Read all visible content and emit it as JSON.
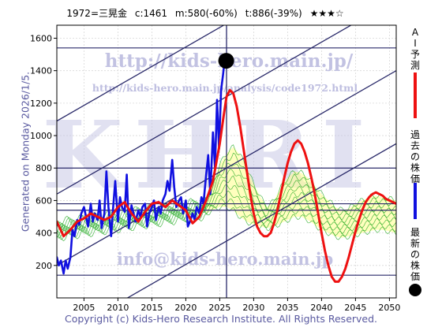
{
  "header": {
    "code_name": "1972=三晃金",
    "current": "c:1461",
    "mid": "m:580(-60%)",
    "target": "t:886(-39%)",
    "stars": "★★★☆"
  },
  "side_text": "Generated on Monday 2026/1/5.",
  "footer": "Copyright (c) Kids-Hero Research Institute. All Rights Reserved.",
  "watermarks": {
    "url": "http://kids-hero.main.jp/",
    "analysis_url": "http://kids-hero.main.jp/analysis/code1972.html",
    "logo": "KHRI",
    "email": "info@kids-hero.main.jp"
  },
  "legend": {
    "ai_forecast": [
      "A",
      "I",
      "予",
      "測"
    ],
    "past_price": [
      "過",
      "去",
      "の",
      "株",
      "価"
    ],
    "latest_price": [
      "最",
      "新",
      "の",
      "株",
      "価"
    ]
  },
  "colors": {
    "past_price": "#1010e0",
    "ai_forecast": "#ee1111",
    "channel_line": "#2a2a6a",
    "forecast_band": "#22aa22",
    "band_fill": "#ffff88",
    "latest_marker": "#000000"
  },
  "chart_data": {
    "type": "line",
    "xlim": [
      2001,
      2051
    ],
    "ylim": [
      0,
      1680
    ],
    "xticks": [
      2005,
      2010,
      2015,
      2020,
      2025,
      2030,
      2035,
      2040,
      2045,
      2050
    ],
    "yticks": [
      200,
      400,
      600,
      800,
      1000,
      1200,
      1400,
      1600
    ],
    "grid": true,
    "latest_point": {
      "x": 2025.95,
      "y": 1461
    },
    "horizontal_levels": [
      1540,
      800,
      580,
      540,
      140
    ],
    "vertical_marker_x": 2026.0,
    "series": [
      {
        "role": "past_price",
        "x": [
          2001,
          2001.3,
          2001.6,
          2002,
          2002.3,
          2002.6,
          2003,
          2003.3,
          2003.6,
          2004,
          2004.3,
          2004.6,
          2005,
          2005.3,
          2005.6,
          2006,
          2006.3,
          2006.6,
          2007,
          2007.3,
          2007.6,
          2008,
          2008.3,
          2008.6,
          2009,
          2009.3,
          2009.6,
          2010,
          2010.3,
          2010.6,
          2011,
          2011.3,
          2011.6,
          2012,
          2012.3,
          2012.6,
          2013,
          2013.3,
          2013.6,
          2014,
          2014.3,
          2014.6,
          2015,
          2015.3,
          2015.6,
          2016,
          2016.3,
          2016.6,
          2017,
          2017.3,
          2017.6,
          2018,
          2018.3,
          2018.6,
          2019,
          2019.3,
          2019.6,
          2020,
          2020.3,
          2020.6,
          2021,
          2021.3,
          2021.6,
          2022,
          2022.3,
          2022.6,
          2023,
          2023.3,
          2023.6,
          2024,
          2024.3,
          2024.6,
          2024.9,
          2025.2,
          2025.5,
          2025.8,
          2025.95
        ],
        "y": [
          250,
          200,
          230,
          150,
          230,
          180,
          250,
          420,
          380,
          480,
          450,
          520,
          560,
          500,
          440,
          580,
          470,
          520,
          480,
          600,
          430,
          520,
          780,
          560,
          380,
          560,
          720,
          470,
          620,
          560,
          530,
          760,
          430,
          570,
          520,
          470,
          540,
          500,
          560,
          580,
          440,
          520,
          560,
          600,
          480,
          560,
          520,
          600,
          640,
          720,
          660,
          850,
          680,
          560,
          600,
          620,
          520,
          600,
          440,
          470,
          520,
          480,
          560,
          520,
          620,
          580,
          760,
          880,
          640,
          1020,
          800,
          1220,
          920,
          1280,
          1380,
          1500,
          1461
        ]
      },
      {
        "role": "ai_forecast",
        "x": [
          2001,
          2002,
          2003,
          2004,
          2005,
          2006,
          2007,
          2008,
          2009,
          2010,
          2011,
          2012,
          2013,
          2014,
          2015,
          2016,
          2017,
          2018,
          2019,
          2020,
          2021,
          2022,
          2023,
          2024,
          2025,
          2025.5,
          2026,
          2026.5,
          2027,
          2027.5,
          2028,
          2028.5,
          2029,
          2029.5,
          2030,
          2030.5,
          2031,
          2031.5,
          2032,
          2032.5,
          2033,
          2033.5,
          2034,
          2034.5,
          2035,
          2035.5,
          2036,
          2036.5,
          2037,
          2037.5,
          2038,
          2038.5,
          2039,
          2039.5,
          2040,
          2040.5,
          2041,
          2041.5,
          2042,
          2042.5,
          2043,
          2043.5,
          2044,
          2044.5,
          2045,
          2045.5,
          2046,
          2046.5,
          2047,
          2047.5,
          2048,
          2048.5,
          2049,
          2049.5,
          2050,
          2050.5,
          2051
        ],
        "y": [
          470,
          380,
          420,
          470,
          490,
          520,
          500,
          480,
          500,
          560,
          590,
          520,
          470,
          530,
          580,
          590,
          560,
          600,
          570,
          540,
          460,
          500,
          600,
          720,
          950,
          1100,
          1240,
          1280,
          1260,
          1180,
          1060,
          920,
          780,
          640,
          520,
          440,
          400,
          380,
          380,
          400,
          460,
          540,
          640,
          740,
          830,
          900,
          950,
          970,
          950,
          900,
          830,
          740,
          640,
          520,
          400,
          290,
          200,
          130,
          100,
          100,
          130,
          180,
          250,
          330,
          410,
          480,
          540,
          590,
          620,
          640,
          650,
          640,
          630,
          610,
          600,
          590,
          580
        ]
      }
    ],
    "band_upper": {
      "x": [
        2023,
        2024,
        2025,
        2026,
        2027,
        2028,
        2029,
        2030,
        2031,
        2032,
        2033,
        2034,
        2035,
        2036,
        2037,
        2038,
        2039,
        2040,
        2041,
        2042,
        2043,
        2044,
        2045,
        2046,
        2047,
        2048,
        2049,
        2050,
        2051
      ],
      "y": [
        620,
        700,
        820,
        890,
        930,
        880,
        800,
        700,
        620,
        560,
        600,
        680,
        740,
        780,
        770,
        740,
        690,
        640,
        600,
        560,
        540,
        550,
        580,
        600,
        620,
        630,
        620,
        610,
        600
      ]
    },
    "band_lower": {
      "x": [
        2023,
        2024,
        2025,
        2026,
        2027,
        2028,
        2029,
        2030,
        2031,
        2032,
        2033,
        2034,
        2035,
        2036,
        2037,
        2038,
        2039,
        2040,
        2041,
        2042,
        2043,
        2044,
        2045,
        2046,
        2047,
        2048,
        2049,
        2050,
        2051
      ],
      "y": [
        520,
        540,
        560,
        560,
        540,
        500,
        470,
        450,
        440,
        430,
        440,
        460,
        480,
        500,
        500,
        480,
        450,
        420,
        400,
        380,
        370,
        380,
        390,
        400,
        410,
        420,
        420,
        410,
        400
      ]
    },
    "channel_lines": [
      {
        "x": [
          2001,
          2051
        ],
        "y": [
          1090,
          2290
        ]
      },
      {
        "x": [
          2001,
          2051
        ],
        "y": [
          640,
          1840
        ]
      },
      {
        "x": [
          2001,
          2051
        ],
        "y": [
          200,
          1400
        ]
      },
      {
        "x": [
          2001,
          2051
        ],
        "y": [
          -250,
          950
        ]
      }
    ]
  }
}
